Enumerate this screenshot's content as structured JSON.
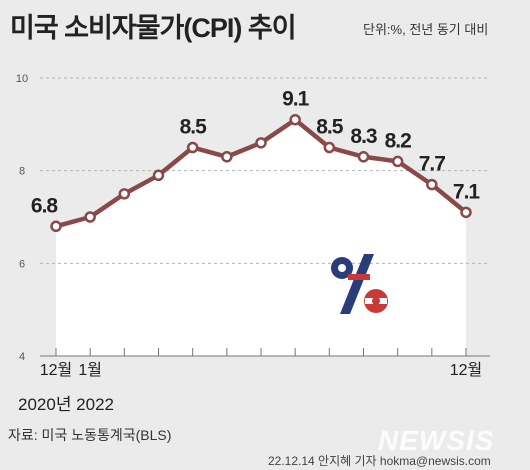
{
  "title": "미국 소비자물가(CPI) 추이",
  "unit_note": "단위:%, 전년 동기 대비",
  "period_label": "2020년 2022",
  "source": "자료: 미국 노동통계국(BLS)",
  "credit": "22.12.14 안지혜 기자 hokma@newsis.com",
  "logo_text": "NEWSIS",
  "colors": {
    "line": "#8b4848",
    "area": "#ffffff",
    "background": "#ebebeb",
    "grid": "#b5b5b5",
    "text": "#222222"
  },
  "chart_data": {
    "type": "line",
    "title": "미국 소비자물가(CPI) 추이",
    "ylim": [
      4,
      10
    ],
    "yticks": [
      4,
      6,
      8,
      10
    ],
    "grid": true,
    "x": [
      "2021-12",
      "2022-01",
      "2022-02",
      "2022-03",
      "2022-04",
      "2022-05",
      "2022-06",
      "2022-07",
      "2022-08",
      "2022-09",
      "2022-10",
      "2022-11",
      "2022-12"
    ],
    "x_tick_labels": [
      "12월",
      "1월",
      "",
      "",
      "",
      "",
      "",
      "",
      "",
      "",
      "",
      "",
      "12월"
    ],
    "values": [
      6.8,
      7.0,
      7.5,
      7.9,
      8.5,
      8.3,
      8.6,
      9.1,
      8.5,
      8.3,
      8.2,
      7.7,
      7.1
    ],
    "data_labels": [
      "6.8",
      "",
      "",
      "",
      "8.5",
      "",
      "",
      "9.1",
      "8.5",
      "8.3",
      "8.2",
      "7.7",
      "7.1"
    ]
  }
}
